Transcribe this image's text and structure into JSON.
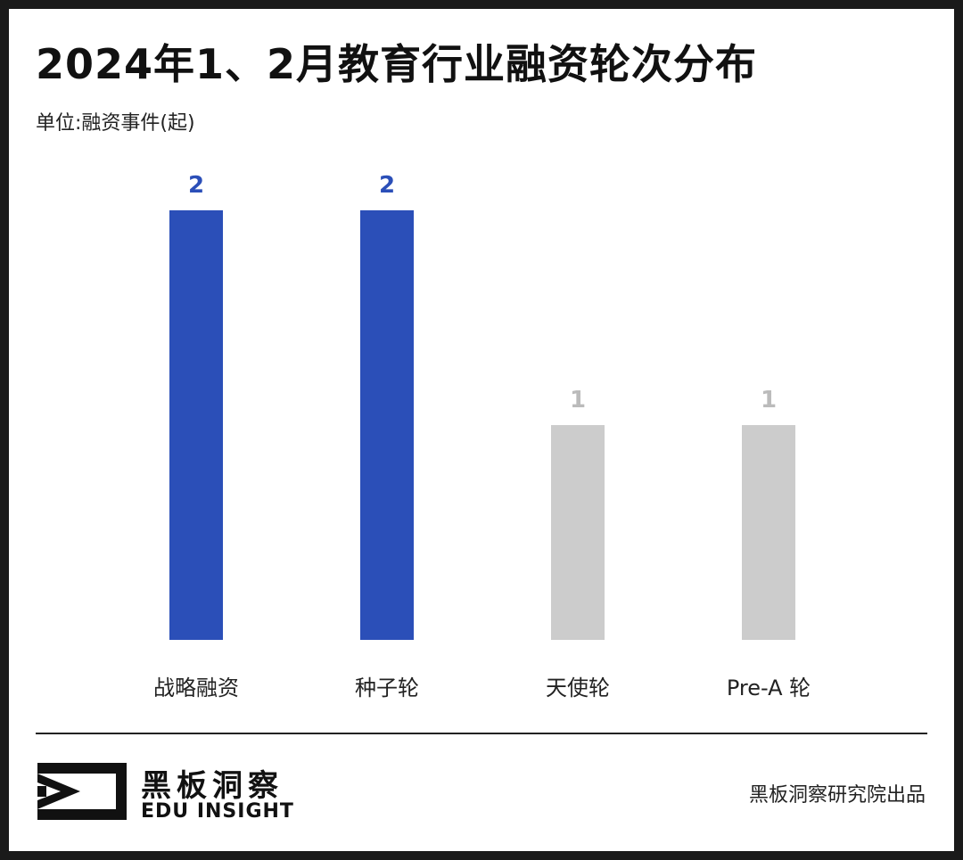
{
  "chart_data": {
    "type": "bar",
    "title": "2024年1、2月教育行业融资轮次分布",
    "unit_label": "单位:融资事件(起)",
    "categories": [
      "战略融资",
      "种子轮",
      "天使轮",
      "Pre-A 轮"
    ],
    "values": [
      2,
      2,
      1,
      1
    ],
    "bar_colors": [
      "#2b4fb8",
      "#2b4fb8",
      "#cccccc",
      "#cccccc"
    ],
    "value_label_colors": [
      "#2b4fb8",
      "#2b4fb8",
      "#bbbbbb",
      "#bbbbbb"
    ],
    "ylim": [
      0,
      2
    ],
    "grid": false,
    "legend": "none"
  },
  "footer": {
    "brand_cn": "黑板洞察",
    "brand_en": "EDU INSIGHT",
    "credit": "黑板洞察研究院出品"
  }
}
